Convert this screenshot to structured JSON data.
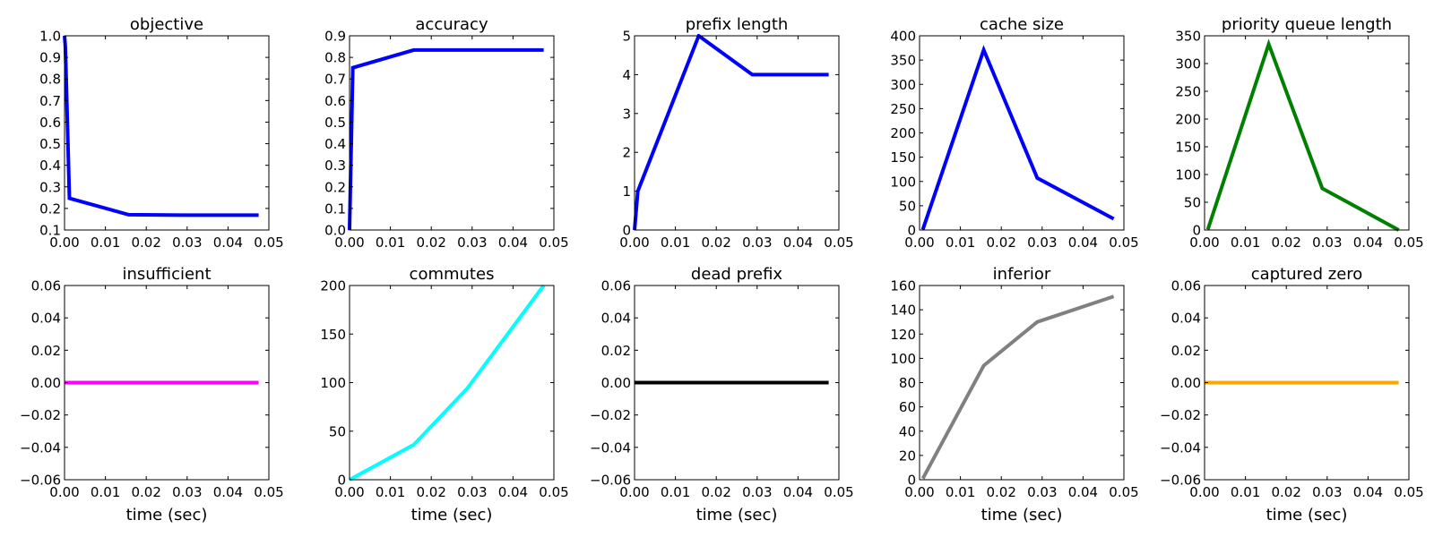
{
  "chart_data": [
    {
      "type": "line",
      "title": "objective",
      "xlabel": "",
      "ylabel": "",
      "xlim": [
        0,
        0.05
      ],
      "ylim": [
        0.1,
        1.0
      ],
      "color": "#0000ff",
      "xticks": [
        "0.00",
        "0.01",
        "0.02",
        "0.03",
        "0.04",
        "0.05"
      ],
      "yticks": [
        "0.1",
        "0.2",
        "0.3",
        "0.4",
        "0.5",
        "0.6",
        "0.7",
        "0.8",
        "0.9",
        "1.0"
      ],
      "x": [
        0.0,
        0.0002,
        0.0012,
        0.0157,
        0.0288,
        0.0475
      ],
      "y": [
        1.0,
        0.95,
        0.247,
        0.171,
        0.169,
        0.169
      ]
    },
    {
      "type": "line",
      "title": "accuracy",
      "xlabel": "",
      "ylabel": "",
      "xlim": [
        0,
        0.05
      ],
      "ylim": [
        0,
        0.9
      ],
      "color": "#0000ff",
      "xticks": [
        "0.00",
        "0.01",
        "0.02",
        "0.03",
        "0.04",
        "0.05"
      ],
      "yticks": [
        "0.0",
        "0.1",
        "0.2",
        "0.3",
        "0.4",
        "0.5",
        "0.6",
        "0.7",
        "0.8",
        "0.9"
      ],
      "x": [
        0.0,
        0.0008,
        0.0157,
        0.0288,
        0.0475
      ],
      "y": [
        0.0,
        0.752,
        0.834,
        0.834,
        0.834
      ]
    },
    {
      "type": "line",
      "title": "prefix length",
      "xlabel": "",
      "ylabel": "",
      "xlim": [
        0,
        0.05
      ],
      "ylim": [
        0,
        5
      ],
      "color": "#0000ff",
      "xticks": [
        "0.00",
        "0.01",
        "0.02",
        "0.03",
        "0.04",
        "0.05"
      ],
      "yticks": [
        "0",
        "1",
        "2",
        "3",
        "4",
        "5"
      ],
      "x": [
        0.0,
        0.0008,
        0.0157,
        0.0288,
        0.0475
      ],
      "y": [
        0,
        1,
        5,
        4,
        4
      ]
    },
    {
      "type": "line",
      "title": "cache size",
      "xlabel": "",
      "ylabel": "",
      "xlim": [
        0,
        0.05
      ],
      "ylim": [
        0,
        400
      ],
      "color": "#0000ff",
      "xticks": [
        "0.00",
        "0.01",
        "0.02",
        "0.03",
        "0.04",
        "0.05"
      ],
      "yticks": [
        "0",
        "50",
        "100",
        "150",
        "200",
        "250",
        "300",
        "350",
        "400"
      ],
      "x": [
        0.0008,
        0.0157,
        0.0288,
        0.0475
      ],
      "y": [
        1,
        371,
        107,
        23
      ]
    },
    {
      "type": "line",
      "title": "priority queue length",
      "xlabel": "",
      "ylabel": "",
      "xlim": [
        0,
        0.05
      ],
      "ylim": [
        0,
        350
      ],
      "color": "#008000",
      "xticks": [
        "0.00",
        "0.01",
        "0.02",
        "0.03",
        "0.04",
        "0.05"
      ],
      "yticks": [
        "0",
        "50",
        "100",
        "150",
        "200",
        "250",
        "300",
        "350"
      ],
      "x": [
        0.0008,
        0.0157,
        0.0288,
        0.0475
      ],
      "y": [
        1,
        335,
        75,
        0
      ]
    },
    {
      "type": "line",
      "title": "insufficient",
      "xlabel": "time (sec)",
      "ylabel": "",
      "xlim": [
        0,
        0.05
      ],
      "ylim": [
        -0.06,
        0.06
      ],
      "color": "#ff00ff",
      "xticks": [
        "0.00",
        "0.01",
        "0.02",
        "0.03",
        "0.04",
        "0.05"
      ],
      "yticks": [
        "−0.06",
        "−0.04",
        "−0.02",
        "0.00",
        "0.02",
        "0.04",
        "0.06"
      ],
      "x": [
        0.0,
        0.0475
      ],
      "y": [
        0,
        0
      ]
    },
    {
      "type": "line",
      "title": "commutes",
      "xlabel": "time (sec)",
      "ylabel": "",
      "xlim": [
        0,
        0.05
      ],
      "ylim": [
        0,
        200
      ],
      "color": "#00ffff",
      "xticks": [
        "0.00",
        "0.01",
        "0.02",
        "0.03",
        "0.04",
        "0.05"
      ],
      "yticks": [
        "0",
        "50",
        "100",
        "150",
        "200"
      ],
      "x": [
        0.0,
        0.0157,
        0.0288,
        0.0475
      ],
      "y": [
        0,
        36,
        94,
        200
      ]
    },
    {
      "type": "line",
      "title": "dead prefix",
      "xlabel": "time (sec)",
      "ylabel": "",
      "xlim": [
        0,
        0.05
      ],
      "ylim": [
        -0.06,
        0.06
      ],
      "color": "#000000",
      "xticks": [
        "0.00",
        "0.01",
        "0.02",
        "0.03",
        "0.04",
        "0.05"
      ],
      "yticks": [
        "−0.06",
        "−0.04",
        "−0.02",
        "0.00",
        "0.02",
        "0.04",
        "0.06"
      ],
      "x": [
        0.0,
        0.0475
      ],
      "y": [
        0,
        0
      ]
    },
    {
      "type": "line",
      "title": "inferior",
      "xlabel": "time (sec)",
      "ylabel": "",
      "xlim": [
        0,
        0.05
      ],
      "ylim": [
        0,
        160
      ],
      "color": "#808080",
      "xticks": [
        "0.00",
        "0.01",
        "0.02",
        "0.03",
        "0.04",
        "0.05"
      ],
      "yticks": [
        "0",
        "20",
        "40",
        "60",
        "80",
        "100",
        "120",
        "140",
        "160"
      ],
      "x": [
        0.0008,
        0.0157,
        0.0288,
        0.0475
      ],
      "y": [
        1,
        94,
        130,
        151
      ]
    },
    {
      "type": "line",
      "title": "captured zero",
      "xlabel": "time (sec)",
      "ylabel": "",
      "xlim": [
        0,
        0.05
      ],
      "ylim": [
        -0.06,
        0.06
      ],
      "color": "#ffa500",
      "xticks": [
        "0.00",
        "0.01",
        "0.02",
        "0.03",
        "0.04",
        "0.05"
      ],
      "yticks": [
        "−0.06",
        "−0.04",
        "−0.02",
        "0.00",
        "0.02",
        "0.04",
        "0.06"
      ],
      "x": [
        0.0,
        0.0475
      ],
      "y": [
        0,
        0
      ]
    }
  ]
}
